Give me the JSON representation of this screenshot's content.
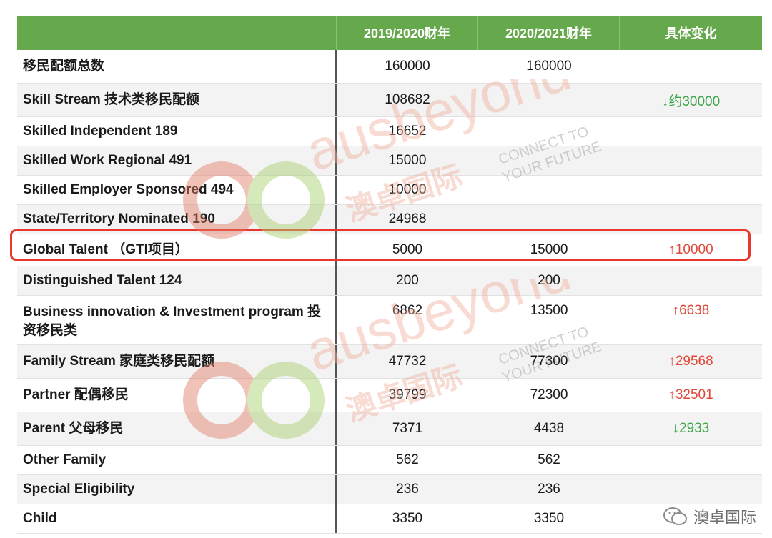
{
  "header": [
    "",
    "2019/2020财年",
    "2020/2021财年",
    "具体变化"
  ],
  "rows": [
    {
      "label": "移民配额总数",
      "y2019": "160000",
      "y2020": "160000",
      "change": "",
      "dir": ""
    },
    {
      "label": "Skill Stream 技术类移民配额",
      "y2019": "108682",
      "y2020": "",
      "change": "↓约30000",
      "dir": "down"
    },
    {
      "label": "Skilled Independent 189",
      "y2019": "16652",
      "y2020": "",
      "change": "",
      "dir": ""
    },
    {
      "label": "Skilled Work Regional 491",
      "y2019": "15000",
      "y2020": "",
      "change": "",
      "dir": ""
    },
    {
      "label": "Skilled Employer Sponsored 494",
      "y2019": "10000",
      "y2020": "",
      "change": "",
      "dir": ""
    },
    {
      "label": "State/Territory Nominated 190",
      "y2019": "24968",
      "y2020": "",
      "change": "",
      "dir": ""
    },
    {
      "label": "Global Talent （GTI项目）",
      "y2019": "5000",
      "y2020": "15000",
      "change": "↑10000",
      "dir": "up"
    },
    {
      "label": "Distinguished Talent  124",
      "y2019": "200",
      "y2020": "200",
      "change": "",
      "dir": ""
    },
    {
      "label": "Business innovation & Investment program 投资移民类",
      "y2019": "6862",
      "y2020": "13500",
      "change": "↑6638",
      "dir": "up"
    },
    {
      "label": "Family Stream 家庭类移民配额",
      "y2019": "47732",
      "y2020": "77300",
      "change": "↑29568",
      "dir": "up"
    },
    {
      "label": "Partner 配偶移民",
      "y2019": "39799",
      "y2020": "72300",
      "change": "↑32501",
      "dir": "up"
    },
    {
      "label": "Parent 父母移民",
      "y2019": "7371",
      "y2020": "4438",
      "change": "↓2933",
      "dir": "down"
    },
    {
      "label": "Other Family",
      "y2019": "562",
      "y2020": "562",
      "change": "",
      "dir": ""
    },
    {
      "label": "Special Eligibility",
      "y2019": "236",
      "y2020": "236",
      "change": "",
      "dir": ""
    },
    {
      "label": "Child",
      "y2019": "3350",
      "y2020": "3350",
      "change": "",
      "dir": ""
    }
  ],
  "watermark": {
    "brand": "ausbeyond",
    "cn": "澳卓国际",
    "tagline1": "CONNECT TO",
    "tagline2": "YOUR FUTURE"
  },
  "footer": {
    "name": "澳卓国际"
  },
  "colors": {
    "header": "#66a84c",
    "up": "#e0493a",
    "down": "#3ea64a",
    "highlight": "#e8382d"
  }
}
